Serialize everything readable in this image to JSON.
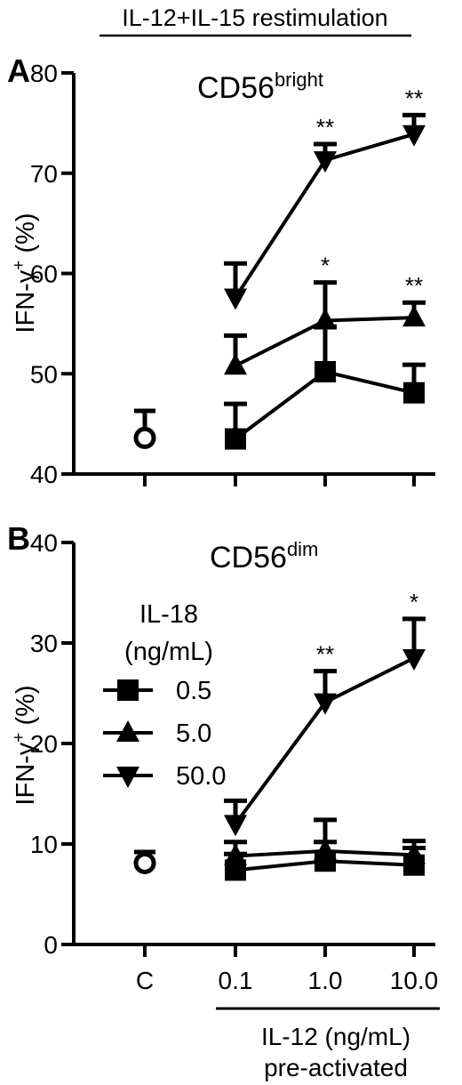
{
  "header": {
    "title": "IL-12+IL-15 restimulation"
  },
  "chart_data": [
    {
      "type": "line",
      "panel": "A",
      "title": "CD56",
      "title_superscript": "bright",
      "ylabel": "IFN-γ",
      "ylabel_superscript": "+",
      "ylabel_unit": "(%)",
      "ylim": [
        40,
        80
      ],
      "yticks": [
        40,
        50,
        60,
        70,
        80
      ],
      "control": {
        "label": "C",
        "value": 43.6,
        "error": 2.7
      },
      "series": [
        {
          "name": "0.5",
          "marker": "square",
          "values": [
            43.5,
            50.2,
            48.1
          ],
          "errors": [
            3.5,
            4.5,
            2.8
          ],
          "significance": [
            "",
            "",
            ""
          ]
        },
        {
          "name": "5.0",
          "marker": "triangle-up",
          "values": [
            50.8,
            55.3,
            55.6
          ],
          "errors": [
            3.0,
            3.8,
            1.5
          ],
          "significance": [
            "",
            "*",
            "**"
          ]
        },
        {
          "name": "50.0",
          "marker": "triangle-down",
          "values": [
            57.6,
            71.3,
            73.9
          ],
          "errors": [
            3.4,
            1.6,
            1.9
          ],
          "significance": [
            "",
            "**",
            "**"
          ]
        }
      ]
    },
    {
      "type": "line",
      "panel": "B",
      "title": "CD56",
      "title_superscript": "dim",
      "ylabel": "IFN-γ",
      "ylabel_superscript": "+",
      "ylabel_unit": "(%)",
      "ylim": [
        0,
        40
      ],
      "yticks": [
        0,
        10,
        20,
        30,
        40
      ],
      "control": {
        "label": "C",
        "value": 8.1,
        "error": 1.1
      },
      "series": [
        {
          "name": "0.5",
          "marker": "square",
          "values": [
            7.4,
            8.3,
            7.9
          ],
          "errors": [
            1.6,
            1.9,
            1.7
          ],
          "significance": [
            "",
            "",
            ""
          ]
        },
        {
          "name": "5.0",
          "marker": "triangle-up",
          "values": [
            8.8,
            9.3,
            8.9
          ],
          "errors": [
            1.4,
            3.1,
            1.4
          ],
          "significance": [
            "",
            "",
            ""
          ]
        },
        {
          "name": "50.0",
          "marker": "triangle-down",
          "values": [
            12.0,
            24.1,
            28.5
          ],
          "errors": [
            2.3,
            3.1,
            3.9
          ],
          "significance": [
            "",
            "**",
            "*"
          ]
        }
      ],
      "legend": {
        "title_line1": "IL-18",
        "title_line2": "(ng/mL)",
        "placement": "left"
      }
    }
  ],
  "x_axis": {
    "categories": [
      "C",
      "0.1",
      "1.0",
      "10.0"
    ],
    "label_line1": "IL-12 (ng/mL)",
    "label_line2": "pre-activated"
  }
}
